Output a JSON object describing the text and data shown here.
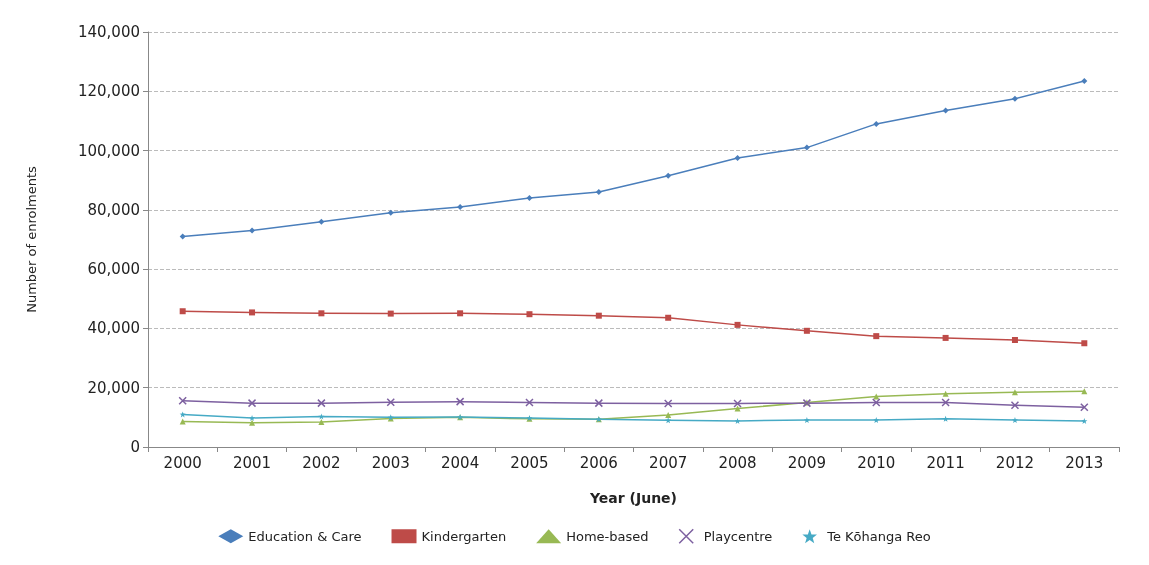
{
  "chart_data": {
    "type": "line",
    "xlabel": "Year (June)",
    "ylabel": "Number of enrolments",
    "categories": [
      "2000",
      "2001",
      "2002",
      "2003",
      "2004",
      "2005",
      "2006",
      "2007",
      "2008",
      "2009",
      "2010",
      "2011",
      "2012",
      "2013"
    ],
    "series": [
      {
        "name": "Education & Care",
        "color": "#4a7ebb",
        "marker": "diamond",
        "values": [
          71000,
          73000,
          76000,
          79000,
          81000,
          84000,
          86000,
          91500,
          97500,
          101000,
          109000,
          113500,
          117500,
          123500
        ]
      },
      {
        "name": "Kindergarten",
        "color": "#be4b48",
        "marker": "square",
        "values": [
          45800,
          45400,
          45100,
          45000,
          45100,
          44800,
          44300,
          43600,
          41200,
          39200,
          37400,
          36800,
          36100,
          35000
        ]
      },
      {
        "name": "Home-based",
        "color": "#98b954",
        "marker": "triangle",
        "values": [
          8600,
          8200,
          8400,
          9600,
          10000,
          9500,
          9400,
          10800,
          13000,
          15000,
          17000,
          18000,
          18500,
          18800
        ]
      },
      {
        "name": "Playcentre",
        "color": "#7d60a0",
        "marker": "cross",
        "values": [
          15600,
          14800,
          14800,
          15100,
          15300,
          15000,
          14800,
          14700,
          14700,
          14800,
          15000,
          15000,
          14100,
          13400
        ]
      },
      {
        "name": "Te Kōhanga Reo",
        "color": "#46aac5",
        "marker": "star",
        "values": [
          11000,
          9800,
          10300,
          10000,
          10100,
          9800,
          9400,
          9000,
          8800,
          9100,
          9100,
          9500,
          9100,
          8800
        ]
      }
    ],
    "ylim": [
      0,
      140000
    ],
    "yticks": [
      {
        "value": 0,
        "label": "0"
      },
      {
        "value": 20000,
        "label": "20,000"
      },
      {
        "value": 40000,
        "label": "40,000"
      },
      {
        "value": 60000,
        "label": "60,000"
      },
      {
        "value": 80000,
        "label": "80,000"
      },
      {
        "value": 100000,
        "label": "100,000"
      },
      {
        "value": 120000,
        "label": "120,000"
      },
      {
        "value": 140000,
        "label": "140,000"
      }
    ],
    "grid": "y",
    "legend": "bottom"
  }
}
